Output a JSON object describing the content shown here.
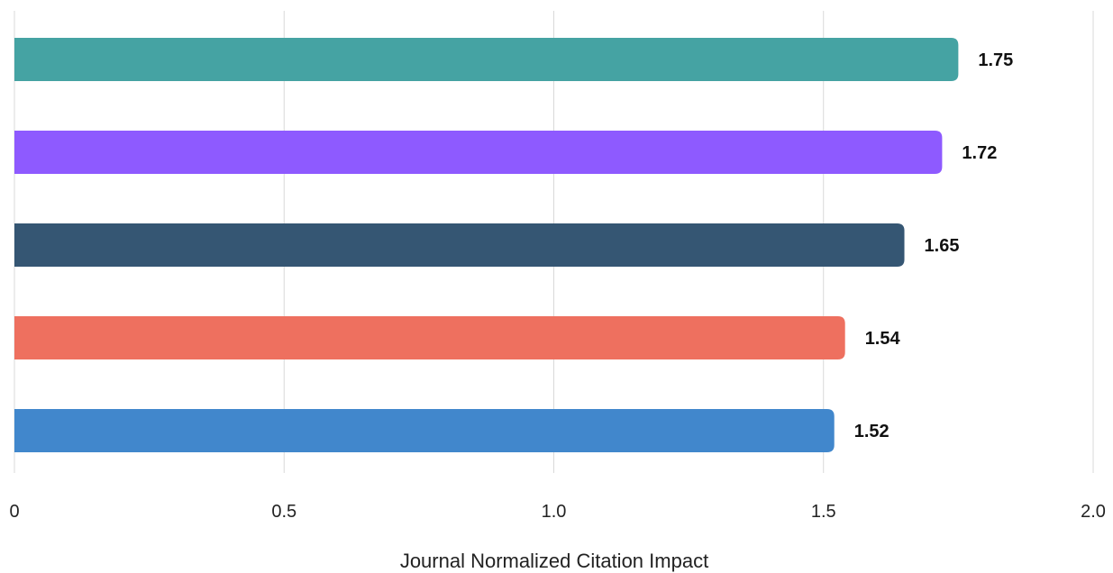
{
  "chart_data": {
    "type": "bar",
    "orientation": "horizontal",
    "xlabel": "Journal Normalized Citation Impact",
    "ylabel": "",
    "xlim": [
      0,
      2.0
    ],
    "x_ticks": [
      {
        "value": 0,
        "label": "0"
      },
      {
        "value": 0.5,
        "label": "0.5"
      },
      {
        "value": 1.0,
        "label": "1.0"
      },
      {
        "value": 1.5,
        "label": "1.5"
      },
      {
        "value": 2.0,
        "label": "2.0"
      }
    ],
    "grid": "vertical",
    "bars": [
      {
        "value": 1.75,
        "label": "1.75",
        "color": "#45a3a3"
      },
      {
        "value": 1.72,
        "label": "1.72",
        "color": "#8e5aff"
      },
      {
        "value": 1.65,
        "label": "1.65",
        "color": "#355673"
      },
      {
        "value": 1.54,
        "label": "1.54",
        "color": "#ee705f"
      },
      {
        "value": 1.52,
        "label": "1.52",
        "color": "#4187cc"
      }
    ]
  }
}
